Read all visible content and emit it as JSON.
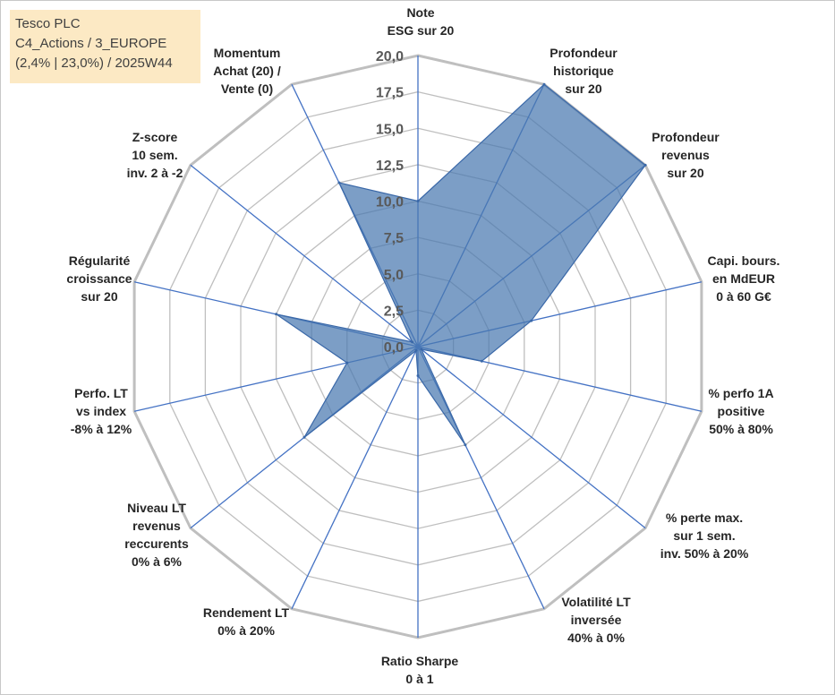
{
  "info": {
    "company": "Tesco PLC",
    "portfolio": "C4_Actions / 3_EUROPE",
    "stats": "(2,4% | 23,0%) / 2025W44"
  },
  "chart_data": {
    "type": "radar",
    "title": "",
    "rlim": [
      0,
      20
    ],
    "ticks": [
      "0,0",
      "2,5",
      "5,0",
      "7,5",
      "10,0",
      "12,5",
      "15,0",
      "17,5",
      "20,0"
    ],
    "grid": true,
    "colors": {
      "fill": "#4a78b0",
      "stroke": "#3a68a8",
      "grid": "#bfbfbf",
      "spoke": "#4472c4"
    },
    "axes": [
      {
        "label": [
          "Note",
          "ESG sur 20"
        ],
        "value": 10.0
      },
      {
        "label": [
          "Profondeur",
          "historique",
          "sur 20"
        ],
        "value": 20.0
      },
      {
        "label": [
          "Profondeur",
          "revenus",
          "sur 20"
        ],
        "value": 20.0
      },
      {
        "label": [
          "Capi. bours.",
          "en MdEUR",
          "0 à 60 G€"
        ],
        "value": 8.0
      },
      {
        "label": [
          "% perfo 1A",
          "positive",
          "50% à 80%"
        ],
        "value": 4.5
      },
      {
        "label": [
          "% perte max.",
          "sur 1 sem.",
          "inv. 50% à 20%"
        ],
        "value": 0.3
      },
      {
        "label": [
          "Volatilité LT",
          "inversée",
          "40% à 0%"
        ],
        "value": 7.5
      },
      {
        "label": [
          "Ratio Sharpe",
          "0 à 1"
        ],
        "value": 2.0
      },
      {
        "label": [
          "Rendement LT",
          "0% à 20%"
        ],
        "value": 0.3
      },
      {
        "label": [
          "Niveau LT",
          "revenus",
          "reccurents",
          "0% à 6%"
        ],
        "value": 10.0
      },
      {
        "label": [
          "Perfo. LT",
          "vs index",
          "-8% à 12%"
        ],
        "value": 5.0
      },
      {
        "label": [
          "Régularité",
          "croissance",
          "sur 20"
        ],
        "value": 10.0
      },
      {
        "label": [
          "Z-score",
          "10 sem.",
          "inv. 2 à -2"
        ],
        "value": 0.5
      },
      {
        "label": [
          "Momentum",
          "Achat (20) /",
          "Vente (0)"
        ],
        "value": 12.5
      }
    ]
  }
}
